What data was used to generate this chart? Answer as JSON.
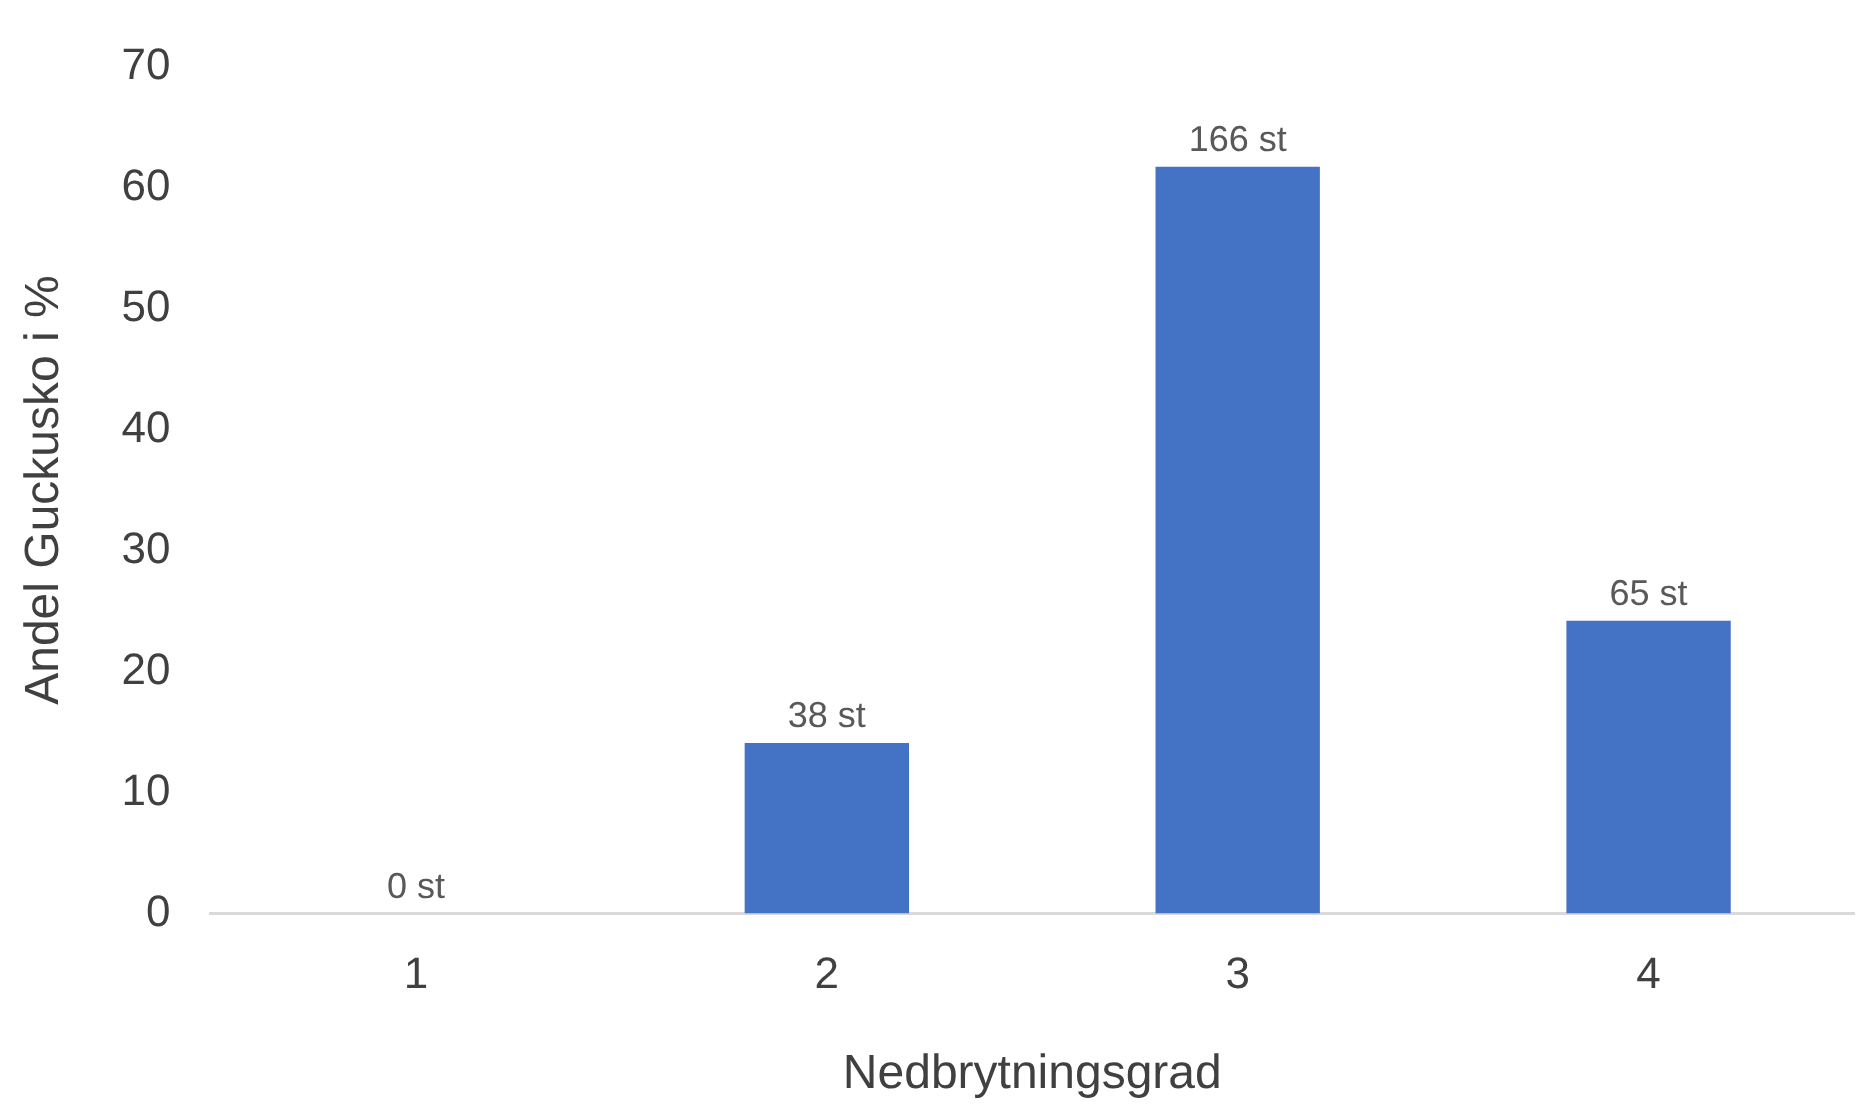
{
  "chart_data": {
    "type": "bar",
    "xlabel": "Nedbrytningsgrad",
    "ylabel": "Andel Guckusko i %",
    "categories": [
      "1",
      "2",
      "3",
      "4"
    ],
    "values": [
      0,
      14.1,
      61.7,
      24.2
    ],
    "annotations": [
      {
        "text": "0 st",
        "x": "1",
        "y": 0
      },
      {
        "text": "38 st",
        "x": "2",
        "y": 14.1
      },
      {
        "text": "166 st",
        "x": "3",
        "y": 61.7
      },
      {
        "text": "65 st",
        "x": "4",
        "y": 24.2
      }
    ],
    "color": "#4472c4",
    "ylim": [
      0,
      70
    ],
    "yticks": [
      0,
      10,
      20,
      30,
      40,
      50,
      60,
      70
    ],
    "grid": false,
    "legend": false
  }
}
